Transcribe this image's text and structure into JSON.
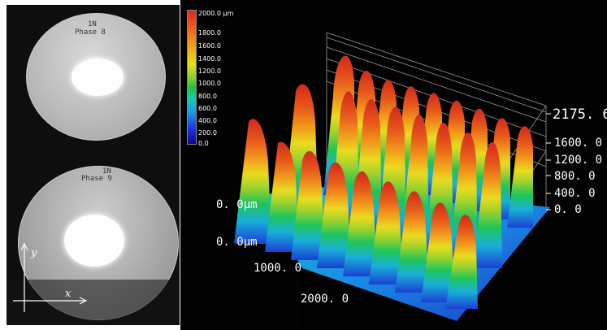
{
  "photo": {
    "top_disc_marks": [
      "1N",
      "Phase 8"
    ],
    "bottom_disc_marks": [
      "1N",
      "Phase 9"
    ],
    "axis_y": "y",
    "axis_x": "x"
  },
  "plot": {
    "colorbar_ticks": [
      "2000.0 µm",
      "1800.0",
      "1600.0",
      "1400.0",
      "1200.0",
      "1000.0",
      "800.0",
      "600.0",
      "400.0",
      "200.0",
      "0.0"
    ],
    "z_axis_ticks": [
      "2175. 6",
      "1600. 0",
      "1200. 0",
      "800. 0",
      "400. 0",
      "0. 0"
    ],
    "origin_top": "0. 0μm",
    "origin_left": "0. 0μm",
    "y_axis_ticks": [
      "1000. 0",
      "2000. 0"
    ]
  }
}
